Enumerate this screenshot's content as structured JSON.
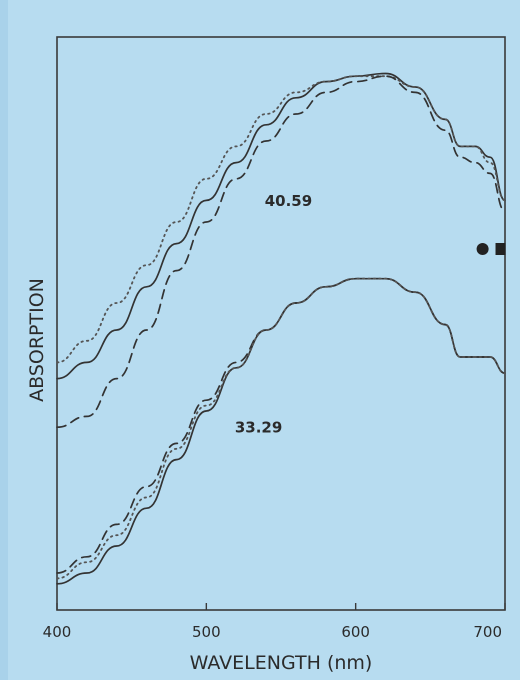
{
  "chart_data": {
    "type": "line",
    "title": "",
    "xlabel": "WAVELENGTH (nm)",
    "ylabel": "ABSORPTION",
    "xlim": [
      400,
      700
    ],
    "ylim": [
      0,
      100
    ],
    "y_ticks_shown": false,
    "grid": false,
    "legend": "none",
    "x_ticks": [
      400,
      500,
      600,
      700
    ],
    "x_tick_labels": [
      "400",
      "500",
      "600",
      "700"
    ],
    "annotations": [
      {
        "text": "40.59",
        "group": "upper",
        "x": 555,
        "y": 73
      },
      {
        "text": "33.29",
        "group": "lower",
        "x": 535,
        "y": 31
      }
    ],
    "markers": [
      {
        "shape": "circle",
        "x": 685,
        "y": 65,
        "color": "#222222"
      },
      {
        "shape": "square",
        "x": 697,
        "y": 65,
        "color": "#222222"
      }
    ],
    "series": [
      {
        "group": "upper",
        "style": "solid",
        "color": "#333333",
        "x": [
          400,
          420,
          440,
          460,
          480,
          500,
          520,
          540,
          560,
          580,
          600,
          620,
          640,
          660,
          670,
          680,
          690,
          700
        ],
        "y": [
          41,
          44,
          50,
          58,
          66,
          74,
          81,
          88,
          93,
          96,
          97,
          97.5,
          95,
          89,
          84,
          84,
          82,
          74
        ]
      },
      {
        "group": "upper",
        "style": "dotted",
        "color": "#555555",
        "x": [
          400,
          420,
          440,
          460,
          480,
          500,
          520,
          540,
          560,
          580,
          600,
          620,
          640,
          660,
          670,
          680,
          690,
          700
        ],
        "y": [
          44,
          48,
          55,
          62,
          70,
          78,
          84,
          90,
          94,
          96,
          97,
          97,
          95,
          89,
          84,
          84,
          81,
          74
        ]
      },
      {
        "group": "upper",
        "style": "dashed",
        "color": "#333333",
        "x": [
          400,
          420,
          440,
          460,
          480,
          500,
          520,
          540,
          560,
          580,
          600,
          620,
          640,
          660,
          670,
          680,
          690,
          700
        ],
        "y": [
          32,
          34,
          41,
          50,
          61,
          70,
          78,
          85,
          90,
          94,
          96,
          97,
          94,
          87,
          82,
          81,
          79,
          72
        ]
      },
      {
        "group": "lower",
        "style": "solid",
        "color": "#333333",
        "x": [
          400,
          420,
          440,
          460,
          480,
          500,
          520,
          540,
          560,
          580,
          600,
          620,
          640,
          660,
          670,
          680,
          690,
          700
        ],
        "y": [
          3,
          5,
          10,
          17,
          26,
          35,
          43,
          50,
          55,
          58,
          59.5,
          59.5,
          57,
          51,
          45,
          45,
          45,
          42
        ]
      },
      {
        "group": "lower",
        "style": "dashed",
        "color": "#333333",
        "x": [
          400,
          420,
          440,
          460,
          480,
          500,
          520,
          540,
          560,
          580,
          600,
          620,
          640,
          660,
          670,
          680,
          690,
          700
        ],
        "y": [
          5,
          8,
          14,
          21,
          29,
          37,
          44,
          50,
          55,
          58,
          59.5,
          59.5,
          57,
          51,
          45,
          45,
          45,
          42
        ]
      },
      {
        "group": "lower",
        "style": "dotted",
        "color": "#555555",
        "x": [
          400,
          420,
          440,
          460,
          480,
          500,
          520,
          540,
          560,
          580,
          600,
          620,
          640,
          660,
          670,
          680,
          690,
          700
        ],
        "y": [
          4,
          7,
          12,
          19,
          28,
          36,
          43,
          50,
          55,
          58,
          59.5,
          59.5,
          57,
          51,
          45,
          45,
          45,
          42
        ]
      }
    ]
  }
}
